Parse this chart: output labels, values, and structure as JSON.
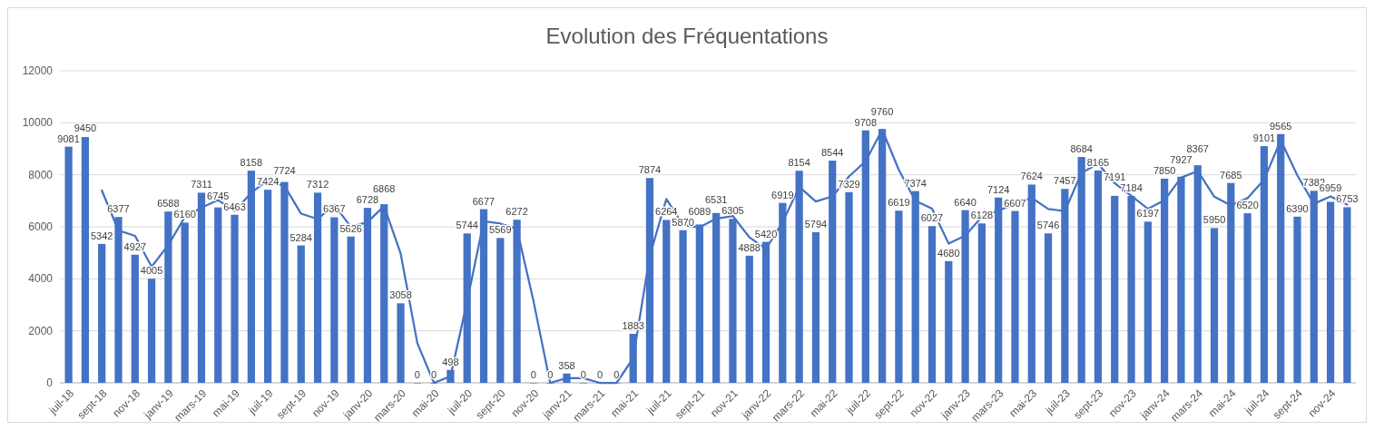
{
  "chart_data": {
    "type": "bar",
    "title": "Evolution des Fréquentations",
    "categories": [
      "juil-18",
      null,
      "sept-18",
      null,
      "nov-18",
      null,
      "janv-19",
      null,
      "mars-19",
      null,
      "mai-19",
      null,
      "juil-19",
      null,
      "sept-19",
      null,
      "nov-19",
      null,
      "janv-20",
      null,
      "mars-20",
      null,
      "mai-20",
      null,
      "juil-20",
      null,
      "sept-20",
      null,
      "nov-20",
      null,
      "janv-21",
      null,
      "mars-21",
      null,
      "mai-21",
      null,
      "juil-21",
      null,
      "sept-21",
      null,
      "nov-21",
      null,
      "janv-22",
      null,
      "mars-22",
      null,
      "mai-22",
      null,
      "juil-22",
      null,
      "sept-22",
      null,
      "nov-22",
      null,
      "janv-23",
      null,
      "mars-23",
      null,
      "mai-23",
      null,
      "juil-23",
      null,
      "sept-23",
      null,
      "nov-23",
      null,
      "janv-24",
      null,
      "mars-24",
      null,
      "mai-24",
      null,
      "juil-24",
      null,
      "sept-24",
      null,
      "nov-24",
      null
    ],
    "series": [
      {
        "color": "#4472c4",
        "values": [
          9081,
          9450,
          5342,
          6377,
          4927,
          4005,
          6588,
          6160,
          7311,
          6745,
          6463,
          8158,
          7424,
          7724,
          5284,
          7312,
          6367,
          5626,
          6728,
          6868,
          3058,
          0,
          0,
          498,
          5744,
          6677,
          5569,
          6272,
          0,
          0,
          358,
          0,
          0,
          0,
          1883,
          7874,
          6264,
          5870,
          6089,
          6531,
          6305,
          4888,
          5420,
          6919,
          8154,
          5794,
          8544,
          7329,
          9708,
          9760,
          6619,
          7374,
          6027,
          4680,
          6640,
          6128,
          7124,
          6607,
          7624,
          5746,
          7457,
          8684,
          8165,
          7191,
          7184,
          6197,
          7850,
          7927,
          8367,
          5950,
          7685,
          6520,
          9101,
          9565,
          6390,
          7382,
          6959,
          6753
        ],
        "value_labels": [
          "9081",
          "9450",
          "5342",
          "6377",
          "4927",
          "4005",
          "6588",
          "6160",
          "7311",
          "6745",
          "6463",
          "8158",
          "7424",
          "7724",
          "5284",
          "7312",
          "6367",
          "5626",
          "6728",
          "6868",
          "3058",
          "0",
          "0",
          "498",
          "5744",
          "6677",
          "5569",
          "6272",
          "0",
          "0",
          "358",
          "0",
          "0",
          "0",
          "1883",
          "7874",
          "6264",
          "5870",
          "6089",
          "6531",
          "6305",
          "4888",
          "5420",
          "6919",
          "8154",
          "5794",
          "8544",
          "7329",
          "9708",
          "9760",
          "6619",
          "7374",
          "6027",
          "4680",
          "6640",
          "6128",
          "7124",
          "6607",
          "7624",
          "5746",
          "7457",
          "8684",
          "8165",
          "7191",
          "7184",
          "6197",
          "7850",
          "7927",
          "8367",
          "5950",
          "7685",
          "6520",
          "9101",
          "9565",
          "6390",
          "7382",
          "6959",
          "6753"
        ]
      },
      {
        "type": "line",
        "color": "#4472c4",
        "values": [
          null,
          null,
          7396,
          5860,
          5652,
          4466,
          5297,
          6374,
          6736,
          7028,
          6604,
          7311,
          7791,
          7574,
          6504,
          6298,
          6840,
          5997,
          6177,
          6798,
          4963,
          1529,
          0,
          249,
          3121,
          6211,
          6123,
          5921,
          3136,
          0,
          179,
          179,
          0,
          0,
          942,
          4879,
          7069,
          6067,
          5980,
          6310,
          6418,
          5597,
          5154,
          6170,
          7537,
          6974,
          7169,
          7937,
          8519,
          9734,
          8190,
          6997,
          6701,
          5354,
          5660,
          6384,
          6626,
          6866,
          7116,
          6685,
          6602,
          8071,
          8425,
          7678,
          7188,
          6691,
          7024,
          7889,
          8147,
          7159,
          6818,
          7103,
          7811,
          9333,
          7978,
          6886,
          7171,
          6856
        ]
      }
    ],
    "ylim": [
      0,
      12000
    ],
    "yticks": [
      0,
      2000,
      4000,
      6000,
      8000,
      10000,
      12000
    ],
    "grid": "y"
  }
}
